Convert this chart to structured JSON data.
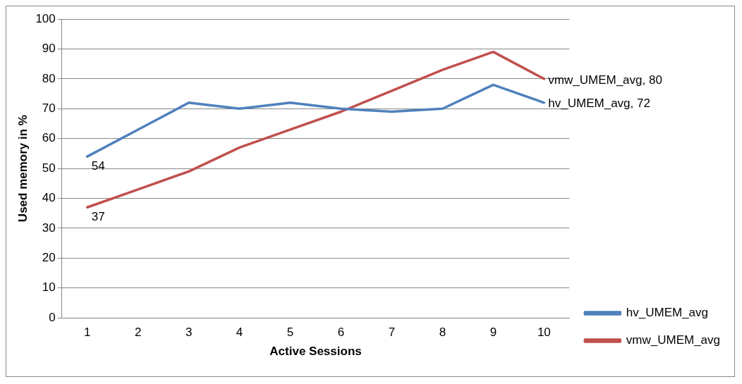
{
  "chart_data": {
    "type": "line",
    "xlabel": "Active Sessions",
    "ylabel": "Used memory in %",
    "categories": [
      "1",
      "2",
      "3",
      "4",
      "5",
      "6",
      "7",
      "8",
      "9",
      "10"
    ],
    "series": [
      {
        "name": "hv_UMEM_avg",
        "color": "#4f81bd",
        "values": [
          54,
          63,
          72,
          70,
          72,
          70,
          69,
          70,
          78,
          72
        ],
        "value_labels": [
          "54",
          null,
          null,
          null,
          null,
          null,
          null,
          null,
          null,
          "hv_UMEM_avg, 72"
        ]
      },
      {
        "name": "vmw_UMEM_avg",
        "color": "#c0504d",
        "values": [
          37,
          43,
          49,
          57,
          63,
          69,
          76,
          83,
          89,
          80
        ],
        "value_labels": [
          "37",
          null,
          null,
          null,
          null,
          null,
          null,
          null,
          null,
          "vmw_UMEM_avg, 80"
        ]
      }
    ],
    "ylim": [
      0,
      100
    ],
    "yticks": [
      0,
      10,
      20,
      30,
      40,
      50,
      60,
      70,
      80,
      90,
      100
    ],
    "grid": "y",
    "legend": "right",
    "marker": "none",
    "line_style": "solid"
  }
}
